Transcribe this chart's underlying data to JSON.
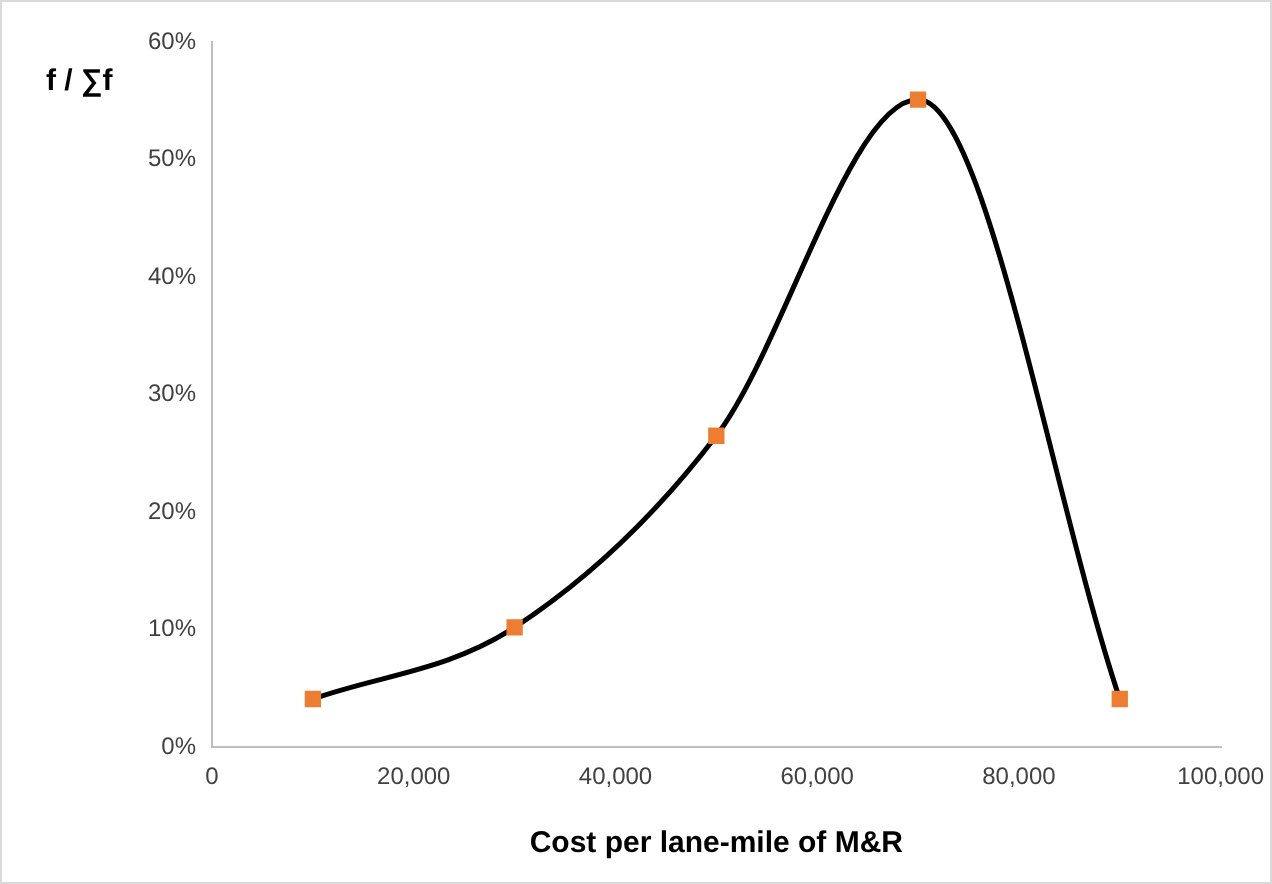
{
  "chart_data": {
    "type": "line",
    "xlabel": "Cost per lane-mile of M&R",
    "ylabel": "f / ∑f",
    "x": [
      10000,
      30000,
      50000,
      70000,
      90000
    ],
    "series": [
      {
        "color": "#000000",
        "colors": [
          "#ed7d31",
          "#ed7d31",
          "#ed7d31",
          "#ed7d31",
          "#ed7d31"
        ],
        "values": [
          4.1,
          10.2,
          26.5,
          55.1,
          4.1
        ]
      }
    ],
    "xlim": [
      0,
      100000
    ],
    "xticks": [
      0,
      {
        "value": 20000,
        "label": "20,000"
      },
      {
        "value": 40000,
        "label": "40,000"
      },
      {
        "value": 60000,
        "label": "60,000"
      },
      {
        "value": 80000,
        "label": "80,000"
      },
      {
        "value": 100000,
        "label": "100,000"
      }
    ],
    "ylim": [
      0,
      60
    ],
    "yticks": [
      {
        "value": 0,
        "label": "0%"
      },
      {
        "value": 10,
        "label": "10%"
      },
      {
        "value": 20,
        "label": "20%"
      },
      {
        "value": 30,
        "label": "30%"
      },
      {
        "value": 40,
        "label": "40%"
      },
      {
        "value": 50,
        "label": "50%"
      },
      {
        "value": 60,
        "label": "60%"
      }
    ],
    "grid": false,
    "legend": false,
    "marker": "square",
    "line_style": "solid"
  }
}
